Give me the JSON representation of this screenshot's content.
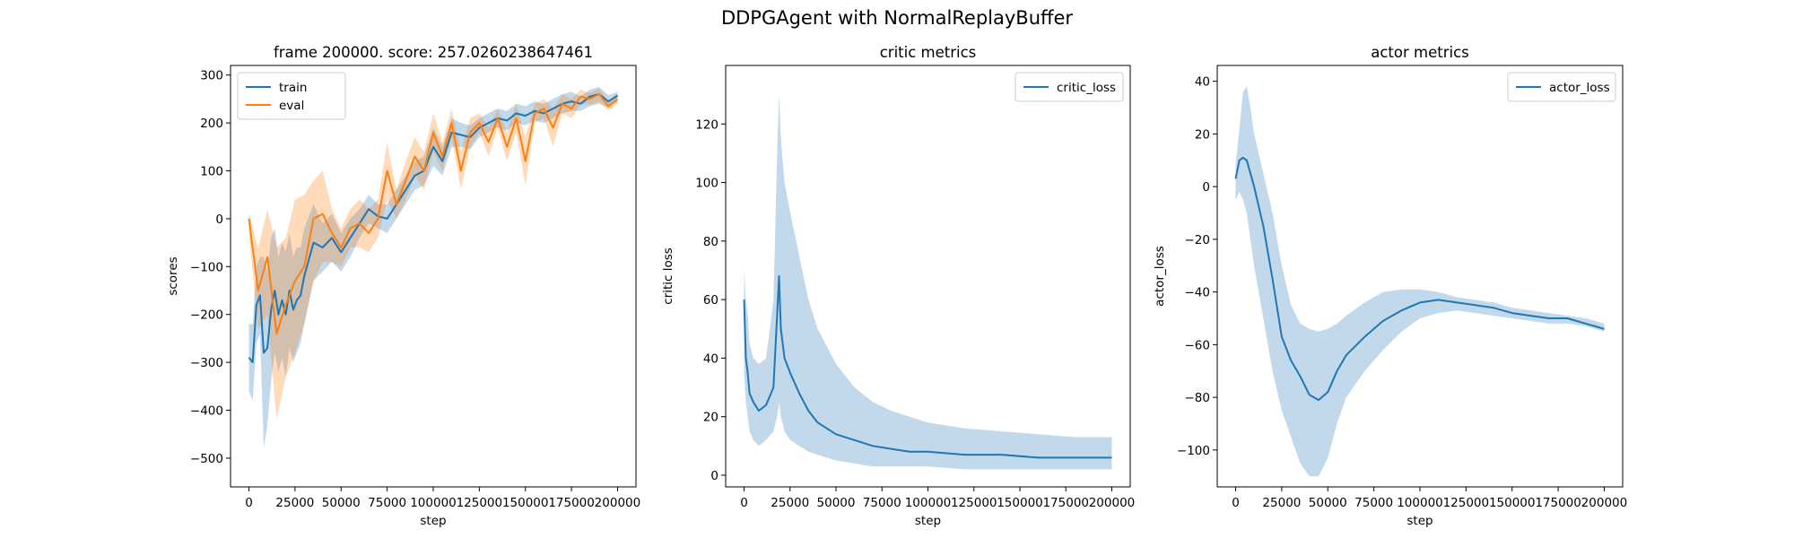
{
  "figure": {
    "suptitle": "DDPGAgent with NormalReplayBuffer"
  },
  "colors": {
    "blue": "#1f77b4",
    "orange": "#ff7f0e"
  },
  "chart_data": [
    {
      "type": "line",
      "title": "frame 200000. score: 257.0260238647461",
      "xlabel": "step",
      "ylabel": "scores",
      "xlim": [
        -10000,
        210000
      ],
      "ylim": [
        -560,
        320
      ],
      "xticks": [
        0,
        25000,
        50000,
        75000,
        100000,
        125000,
        150000,
        175000,
        200000
      ],
      "yticks": [
        -500,
        -400,
        -300,
        -200,
        -100,
        0,
        100,
        200,
        300
      ],
      "legend": "top-left",
      "series": [
        {
          "name": "train",
          "color": "#1f77b4",
          "x": [
            0,
            2000,
            4000,
            6000,
            8000,
            10000,
            12000,
            14000,
            16000,
            18000,
            20000,
            22000,
            24000,
            26000,
            28000,
            30000,
            35000,
            40000,
            45000,
            50000,
            55000,
            60000,
            65000,
            70000,
            75000,
            80000,
            85000,
            90000,
            95000,
            100000,
            105000,
            110000,
            115000,
            120000,
            125000,
            130000,
            135000,
            140000,
            145000,
            150000,
            155000,
            160000,
            165000,
            170000,
            175000,
            180000,
            185000,
            190000,
            195000,
            200000
          ],
          "y": [
            -290,
            -300,
            -180,
            -160,
            -280,
            -270,
            -190,
            -150,
            -200,
            -170,
            -200,
            -150,
            -190,
            -170,
            -160,
            -120,
            -50,
            -60,
            -40,
            -70,
            -40,
            -10,
            20,
            5,
            0,
            30,
            60,
            90,
            100,
            150,
            120,
            180,
            175,
            170,
            190,
            200,
            210,
            205,
            220,
            215,
            225,
            220,
            230,
            240,
            245,
            240,
            255,
            260,
            245,
            257
          ],
          "band_low": [
            -360,
            -380,
            -260,
            -240,
            -480,
            -430,
            -340,
            -280,
            -320,
            -290,
            -330,
            -270,
            -300,
            -280,
            -260,
            -220,
            -130,
            -110,
            -90,
            -110,
            -80,
            -40,
            -10,
            -20,
            -30,
            0,
            30,
            60,
            70,
            110,
            90,
            150,
            150,
            145,
            170,
            180,
            190,
            185,
            200,
            195,
            205,
            200,
            210,
            220,
            225,
            225,
            235,
            240,
            232,
            245
          ],
          "band_high": [
            -220,
            -220,
            -100,
            -80,
            -80,
            -110,
            -40,
            -20,
            -80,
            -50,
            -70,
            -30,
            -80,
            -60,
            -60,
            -20,
            30,
            -10,
            10,
            -30,
            0,
            20,
            50,
            30,
            30,
            60,
            90,
            120,
            130,
            190,
            150,
            210,
            200,
            195,
            210,
            220,
            230,
            225,
            240,
            235,
            245,
            240,
            250,
            260,
            265,
            255,
            270,
            275,
            258,
            265
          ]
        },
        {
          "name": "eval",
          "color": "#ff7f0e",
          "x": [
            0,
            5000,
            10000,
            15000,
            20000,
            25000,
            30000,
            35000,
            40000,
            45000,
            50000,
            55000,
            60000,
            65000,
            70000,
            75000,
            80000,
            85000,
            90000,
            95000,
            100000,
            105000,
            110000,
            115000,
            120000,
            125000,
            130000,
            135000,
            140000,
            145000,
            150000,
            155000,
            160000,
            165000,
            170000,
            175000,
            180000,
            185000,
            190000,
            195000,
            200000
          ],
          "y": [
            0,
            -150,
            -80,
            -240,
            -180,
            -130,
            -100,
            0,
            10,
            -30,
            -60,
            -20,
            -10,
            -30,
            0,
            100,
            30,
            80,
            130,
            100,
            180,
            130,
            200,
            100,
            180,
            200,
            160,
            210,
            150,
            210,
            120,
            220,
            230,
            190,
            240,
            230,
            255,
            250,
            260,
            235,
            250
          ],
          "band_low": [
            -30,
            -230,
            -200,
            -420,
            -330,
            -280,
            -220,
            -130,
            -90,
            -90,
            -100,
            -60,
            -60,
            -70,
            -40,
            40,
            0,
            40,
            90,
            60,
            140,
            100,
            170,
            60,
            150,
            180,
            130,
            190,
            120,
            180,
            70,
            200,
            210,
            150,
            220,
            210,
            240,
            238,
            245,
            225,
            240
          ],
          "band_high": [
            10,
            -60,
            20,
            -60,
            -40,
            40,
            50,
            80,
            100,
            20,
            -20,
            20,
            40,
            20,
            40,
            160,
            60,
            120,
            170,
            140,
            220,
            160,
            230,
            140,
            210,
            220,
            190,
            230,
            180,
            240,
            170,
            240,
            250,
            230,
            260,
            250,
            270,
            262,
            272,
            245,
            262
          ]
        }
      ]
    },
    {
      "type": "line",
      "title": "critic metrics",
      "xlabel": "step",
      "ylabel": "critic loss",
      "xlim": [
        -10000,
        210000
      ],
      "ylim": [
        -4,
        140
      ],
      "xticks": [
        0,
        25000,
        50000,
        75000,
        100000,
        125000,
        150000,
        175000,
        200000
      ],
      "yticks": [
        0,
        20,
        40,
        60,
        80,
        100,
        120
      ],
      "legend": "top-right",
      "series": [
        {
          "name": "critic_loss",
          "color": "#1f77b4",
          "x": [
            0,
            1000,
            2000,
            3000,
            5000,
            8000,
            12000,
            16000,
            18000,
            19000,
            20000,
            22000,
            25000,
            30000,
            35000,
            40000,
            50000,
            60000,
            70000,
            80000,
            90000,
            100000,
            120000,
            140000,
            160000,
            180000,
            200000
          ],
          "y": [
            60,
            40,
            35,
            28,
            25,
            22,
            24,
            30,
            55,
            68,
            50,
            40,
            35,
            28,
            22,
            18,
            14,
            12,
            10,
            9,
            8,
            8,
            7,
            7,
            6,
            6,
            6
          ],
          "band_low": [
            35,
            25,
            20,
            15,
            12,
            10,
            12,
            15,
            20,
            25,
            20,
            15,
            12,
            10,
            8,
            7,
            5,
            4,
            3,
            3,
            3,
            3,
            2,
            2,
            2,
            2,
            2
          ],
          "band_high": [
            70,
            60,
            55,
            45,
            40,
            38,
            40,
            60,
            110,
            130,
            115,
            100,
            90,
            75,
            60,
            50,
            38,
            30,
            25,
            22,
            20,
            18,
            16,
            15,
            14,
            13,
            13
          ]
        }
      ]
    },
    {
      "type": "line",
      "title": "actor metrics",
      "xlabel": "step",
      "ylabel": "actor_loss",
      "xlim": [
        -10000,
        210000
      ],
      "ylim": [
        -114,
        46
      ],
      "xticks": [
        0,
        25000,
        50000,
        75000,
        100000,
        125000,
        150000,
        175000,
        200000
      ],
      "yticks": [
        -100,
        -80,
        -60,
        -40,
        -20,
        0,
        20,
        40
      ],
      "legend": "top-right",
      "series": [
        {
          "name": "actor_loss",
          "color": "#1f77b4",
          "x": [
            0,
            2000,
            4000,
            6000,
            8000,
            10000,
            15000,
            20000,
            25000,
            30000,
            35000,
            40000,
            45000,
            50000,
            55000,
            60000,
            70000,
            80000,
            90000,
            100000,
            110000,
            120000,
            130000,
            140000,
            150000,
            160000,
            170000,
            180000,
            190000,
            200000
          ],
          "y": [
            3,
            10,
            11,
            10,
            5,
            0,
            -15,
            -35,
            -57,
            -66,
            -72,
            -79,
            -81,
            -78,
            -70,
            -64,
            -57,
            -51,
            -47,
            -44,
            -43,
            -44,
            -45,
            -46,
            -48,
            -49,
            -50,
            -50,
            -52,
            -54
          ],
          "band_low": [
            -5,
            -2,
            -5,
            -10,
            -20,
            -30,
            -50,
            -70,
            -85,
            -95,
            -105,
            -110,
            -110,
            -103,
            -90,
            -80,
            -70,
            -62,
            -55,
            -50,
            -48,
            -47,
            -48,
            -49,
            -50,
            -51,
            -52,
            -52,
            -53,
            -55
          ],
          "band_high": [
            8,
            22,
            36,
            38,
            30,
            20,
            5,
            -10,
            -30,
            -45,
            -52,
            -54,
            -55,
            -54,
            -52,
            -49,
            -44,
            -40,
            -39,
            -39,
            -40,
            -42,
            -43,
            -44,
            -46,
            -47,
            -48,
            -49,
            -50,
            -52
          ]
        }
      ]
    }
  ]
}
